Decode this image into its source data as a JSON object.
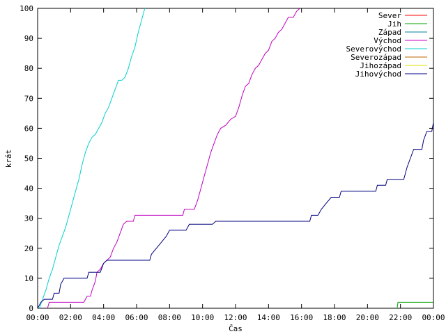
{
  "chart_data": {
    "type": "line",
    "xlabel": "Čas",
    "ylabel": "krát",
    "xlim": [
      0,
      24
    ],
    "ylim": [
      0,
      100
    ],
    "x_ticks": [
      {
        "value": 0,
        "label": "00:00"
      },
      {
        "value": 2,
        "label": "02:00"
      },
      {
        "value": 4,
        "label": "04:00"
      },
      {
        "value": 6,
        "label": "06:00"
      },
      {
        "value": 8,
        "label": "08:00"
      },
      {
        "value": 10,
        "label": "10:00"
      },
      {
        "value": 12,
        "label": "12:00"
      },
      {
        "value": 14,
        "label": "14:00"
      },
      {
        "value": 16,
        "label": "16:00"
      },
      {
        "value": 18,
        "label": "18:00"
      },
      {
        "value": 20,
        "label": "20:00"
      },
      {
        "value": 22,
        "label": "22:00"
      },
      {
        "value": 24,
        "label": "00:00"
      }
    ],
    "y_ticks": [
      0,
      10,
      20,
      30,
      40,
      50,
      60,
      70,
      80,
      90,
      100
    ],
    "grid": false,
    "legend_position": "top-right",
    "series": [
      {
        "name": "Sever",
        "color": "#ff0000",
        "points": []
      },
      {
        "name": "Jih",
        "color": "#00a000",
        "points": [
          [
            21.8,
            0
          ],
          [
            21.85,
            2
          ],
          [
            24,
            2
          ]
        ]
      },
      {
        "name": "Západ",
        "color": "#0080a0",
        "points": []
      },
      {
        "name": "Východ",
        "color": "#c000c0",
        "points": [
          [
            0.6,
            0
          ],
          [
            0.7,
            2
          ],
          [
            2.8,
            2
          ],
          [
            2.9,
            3
          ],
          [
            3.0,
            4
          ],
          [
            3.2,
            4
          ],
          [
            3.3,
            6
          ],
          [
            3.5,
            9
          ],
          [
            3.6,
            12
          ],
          [
            3.8,
            13
          ],
          [
            4.0,
            15
          ],
          [
            4.2,
            16
          ],
          [
            4.4,
            17
          ],
          [
            4.6,
            20
          ],
          [
            4.8,
            22
          ],
          [
            5.0,
            25
          ],
          [
            5.2,
            28
          ],
          [
            5.4,
            29
          ],
          [
            5.8,
            29
          ],
          [
            5.9,
            31
          ],
          [
            8.8,
            31
          ],
          [
            8.9,
            33
          ],
          [
            9.5,
            33
          ],
          [
            9.7,
            36
          ],
          [
            9.9,
            40
          ],
          [
            10.1,
            44
          ],
          [
            10.3,
            48
          ],
          [
            10.5,
            52
          ],
          [
            10.7,
            55
          ],
          [
            10.9,
            58
          ],
          [
            11.1,
            60
          ],
          [
            11.4,
            61
          ],
          [
            11.7,
            63
          ],
          [
            12.0,
            64
          ],
          [
            12.2,
            67
          ],
          [
            12.4,
            71
          ],
          [
            12.6,
            74
          ],
          [
            12.8,
            75
          ],
          [
            13.0,
            78
          ],
          [
            13.2,
            80
          ],
          [
            13.4,
            81
          ],
          [
            13.6,
            83
          ],
          [
            13.8,
            85
          ],
          [
            14.0,
            86
          ],
          [
            14.2,
            89
          ],
          [
            14.4,
            90
          ],
          [
            14.6,
            92
          ],
          [
            14.8,
            93
          ],
          [
            15.0,
            95
          ],
          [
            15.2,
            97
          ],
          [
            15.5,
            97
          ],
          [
            15.7,
            99
          ],
          [
            15.9,
            100
          ]
        ]
      },
      {
        "name": "Severovýchod",
        "color": "#00d0d0",
        "points": [
          [
            0.1,
            0
          ],
          [
            0.3,
            3
          ],
          [
            0.5,
            6
          ],
          [
            0.7,
            10
          ],
          [
            0.9,
            13
          ],
          [
            1.1,
            17
          ],
          [
            1.3,
            21
          ],
          [
            1.5,
            24
          ],
          [
            1.7,
            27
          ],
          [
            1.9,
            31
          ],
          [
            2.1,
            35
          ],
          [
            2.3,
            39
          ],
          [
            2.5,
            43
          ],
          [
            2.7,
            48
          ],
          [
            2.9,
            52
          ],
          [
            3.1,
            55
          ],
          [
            3.3,
            57
          ],
          [
            3.5,
            58
          ],
          [
            3.7,
            60
          ],
          [
            3.9,
            62
          ],
          [
            4.1,
            65
          ],
          [
            4.3,
            67
          ],
          [
            4.5,
            70
          ],
          [
            4.7,
            73
          ],
          [
            4.9,
            76
          ],
          [
            5.1,
            76
          ],
          [
            5.3,
            77
          ],
          [
            5.5,
            80
          ],
          [
            5.7,
            84
          ],
          [
            5.9,
            87
          ],
          [
            6.1,
            92
          ],
          [
            6.3,
            96
          ],
          [
            6.5,
            100
          ]
        ]
      },
      {
        "name": "Severozápad",
        "color": "#c06000",
        "points": []
      },
      {
        "name": "Jihozápad",
        "color": "#e0e000",
        "points": []
      },
      {
        "name": "Jihovýchod",
        "color": "#000080",
        "points": [
          [
            0.0,
            0
          ],
          [
            0.2,
            2
          ],
          [
            0.4,
            3
          ],
          [
            0.9,
            3
          ],
          [
            1.0,
            5
          ],
          [
            1.3,
            5
          ],
          [
            1.4,
            8
          ],
          [
            1.6,
            10
          ],
          [
            3.0,
            10
          ],
          [
            3.1,
            12
          ],
          [
            3.8,
            12
          ],
          [
            4.0,
            15
          ],
          [
            4.2,
            16
          ],
          [
            6.8,
            16
          ],
          [
            6.9,
            18
          ],
          [
            7.2,
            20
          ],
          [
            7.5,
            22
          ],
          [
            7.8,
            24
          ],
          [
            8.0,
            26
          ],
          [
            9.0,
            26
          ],
          [
            9.2,
            28
          ],
          [
            10.6,
            28
          ],
          [
            10.8,
            29
          ],
          [
            16.5,
            29
          ],
          [
            16.6,
            31
          ],
          [
            17.0,
            31
          ],
          [
            17.2,
            33
          ],
          [
            17.5,
            35
          ],
          [
            17.8,
            37
          ],
          [
            18.3,
            37
          ],
          [
            18.4,
            39
          ],
          [
            20.5,
            39
          ],
          [
            20.6,
            41
          ],
          [
            21.1,
            41
          ],
          [
            21.2,
            43
          ],
          [
            22.2,
            43
          ],
          [
            22.4,
            47
          ],
          [
            22.6,
            50
          ],
          [
            22.8,
            53
          ],
          [
            23.3,
            53
          ],
          [
            23.4,
            56
          ],
          [
            23.6,
            59
          ],
          [
            23.9,
            59
          ],
          [
            24.0,
            62
          ]
        ]
      }
    ]
  }
}
